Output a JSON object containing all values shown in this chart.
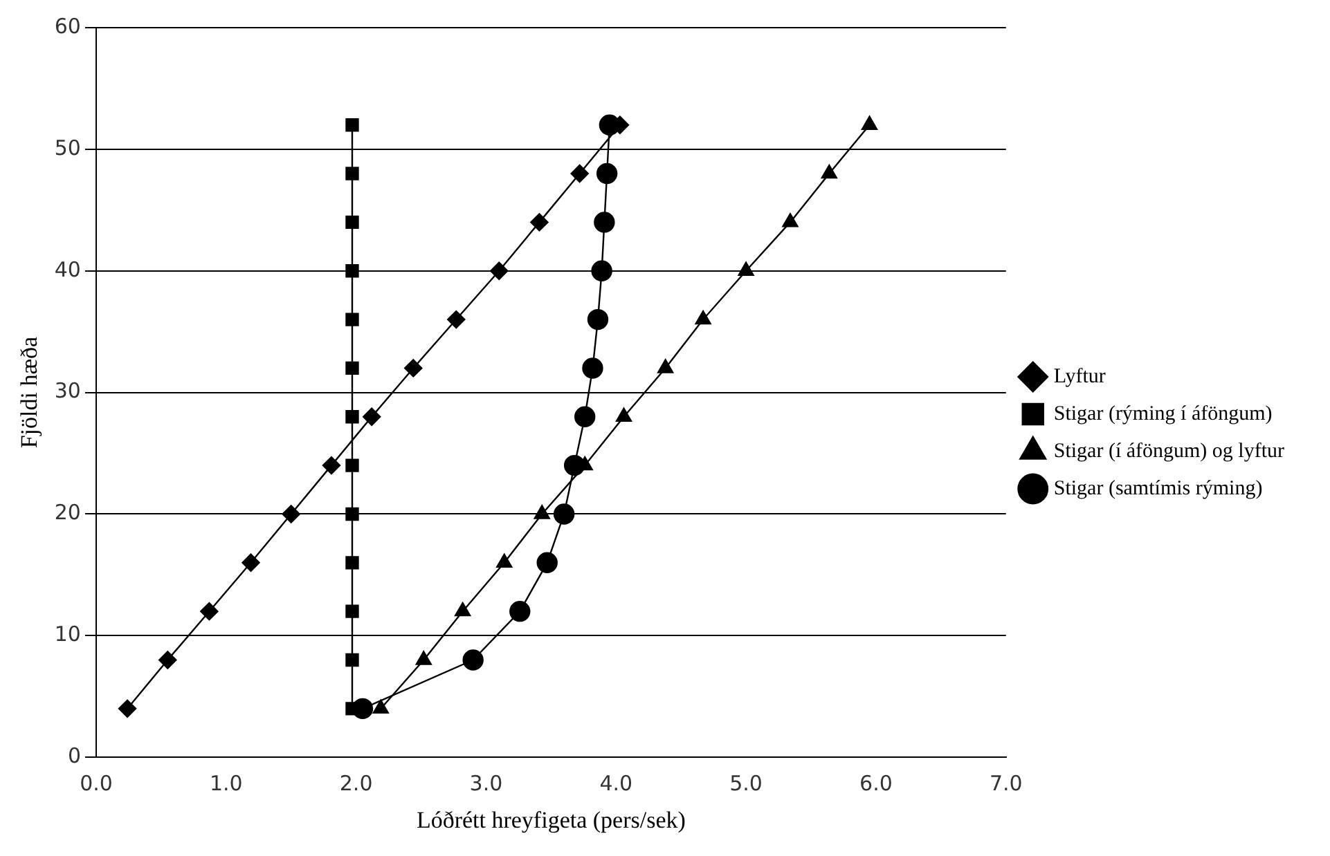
{
  "chart_data": {
    "type": "line",
    "xlabel": "Lóðrétt hreyfigeta (pers/sek)",
    "ylabel": "Fjöldi hæða",
    "xlim": [
      0,
      7
    ],
    "xticks": [
      {
        "value": 0,
        "label": "0.0"
      },
      {
        "value": 1,
        "label": "1.0"
      },
      {
        "value": 2,
        "label": "2.0"
      },
      {
        "value": 3,
        "label": "3.0"
      },
      {
        "value": 4,
        "label": "4.0"
      },
      {
        "value": 5,
        "label": "5.0"
      },
      {
        "value": 6,
        "label": "6.0"
      },
      {
        "value": 7,
        "label": "7.0"
      }
    ],
    "ylim": [
      0,
      60
    ],
    "yticks": [
      0,
      10,
      20,
      30,
      40,
      50,
      60
    ],
    "grid": "y",
    "legend": "right",
    "line_style": "solid",
    "series": [
      {
        "name": "Lyftur",
        "color": "#000000",
        "marker": "diamond",
        "x": [
          0.24,
          0.55,
          0.87,
          1.19,
          1.5,
          1.81,
          2.12,
          2.44,
          2.77,
          3.1,
          3.41,
          3.72,
          4.03
        ],
        "values": [
          4,
          8,
          12,
          16,
          20,
          24,
          28,
          32,
          36,
          40,
          44,
          48,
          52
        ]
      },
      {
        "name": "Stigar (rýming í áföngum)",
        "color": "#000000",
        "marker": "square",
        "x": [
          1.97,
          1.97,
          1.97,
          1.97,
          1.97,
          1.97,
          1.97,
          1.97,
          1.97,
          1.97,
          1.97,
          1.97,
          1.97
        ],
        "values": [
          4,
          8,
          12,
          16,
          20,
          24,
          28,
          32,
          36,
          40,
          44,
          48,
          52
        ]
      },
      {
        "name": "Stigar (í áföngum) og lyftur",
        "color": "#000000",
        "marker": "triangle",
        "x": [
          2.19,
          2.52,
          2.82,
          3.14,
          3.43,
          3.76,
          4.06,
          4.38,
          4.67,
          5.0,
          5.34,
          5.64,
          5.95
        ],
        "values": [
          4,
          8,
          12,
          16,
          20,
          24,
          28,
          32,
          36,
          40,
          44,
          48,
          52
        ]
      },
      {
        "name": "Stigar (samtímis rýming)",
        "color": "#000000",
        "marker": "circle",
        "x": [
          2.05,
          2.9,
          3.26,
          3.47,
          3.6,
          3.68,
          3.76,
          3.82,
          3.86,
          3.89,
          3.91,
          3.93,
          3.95
        ],
        "values": [
          4,
          8,
          12,
          16,
          20,
          24,
          28,
          32,
          36,
          40,
          44,
          48,
          52
        ]
      }
    ]
  }
}
